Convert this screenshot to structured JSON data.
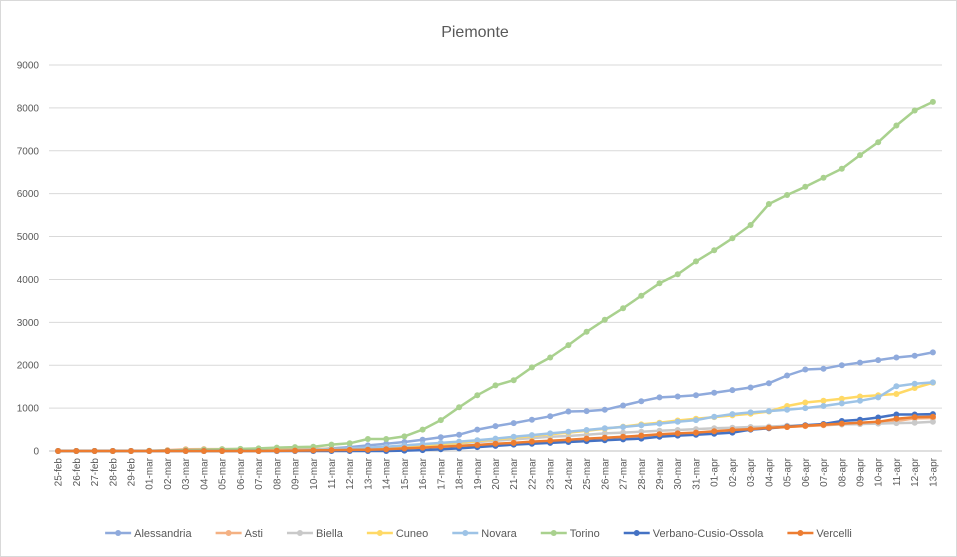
{
  "chart_data": {
    "type": "line",
    "title": "Piemonte",
    "xlabel": "",
    "ylabel": "",
    "ylim": [
      0,
      9000
    ],
    "yticks": [
      0,
      1000,
      2000,
      3000,
      4000,
      5000,
      6000,
      7000,
      8000,
      9000
    ],
    "grid": true,
    "legend_position": "bottom",
    "categories": [
      "25-feb",
      "26-feb",
      "27-feb",
      "28-feb",
      "29-feb",
      "01-mar",
      "02-mar",
      "03-mar",
      "04-mar",
      "05-mar",
      "06-mar",
      "07-mar",
      "08-mar",
      "09-mar",
      "10-mar",
      "11-mar",
      "12-mar",
      "13-mar",
      "14-mar",
      "15-mar",
      "16-mar",
      "17-mar",
      "18-mar",
      "19-mar",
      "20-mar",
      "21-mar",
      "22-mar",
      "23-mar",
      "24-mar",
      "25-mar",
      "26-mar",
      "27-mar",
      "28-mar",
      "29-mar",
      "30-mar",
      "31-mar",
      "01-apr",
      "02-apr",
      "03-apr",
      "04-apr",
      "05-apr",
      "06-apr",
      "07-apr",
      "08-apr",
      "09-apr",
      "10-apr",
      "11-apr",
      "12-apr",
      "13-apr"
    ],
    "series": [
      {
        "name": "Alessandria",
        "color": "#8faadc",
        "values": [
          0,
          0,
          0,
          0,
          0,
          0,
          0,
          2,
          5,
          8,
          10,
          15,
          20,
          25,
          35,
          60,
          90,
          130,
          170,
          210,
          260,
          320,
          380,
          500,
          580,
          650,
          730,
          810,
          920,
          930,
          960,
          1060,
          1160,
          1250,
          1270,
          1300,
          1360,
          1420,
          1480,
          1580,
          1760,
          1900,
          1920,
          2000,
          2060,
          2120,
          2180,
          2220,
          2300
        ]
      },
      {
        "name": "Asti",
        "color": "#f4b183",
        "values": [
          0,
          0,
          0,
          0,
          0,
          0,
          20,
          40,
          45,
          45,
          45,
          45,
          45,
          50,
          50,
          50,
          50,
          55,
          60,
          70,
          80,
          100,
          120,
          140,
          160,
          180,
          200,
          220,
          240,
          270,
          290,
          310,
          340,
          380,
          400,
          420,
          450,
          480,
          510,
          530,
          560,
          580,
          600,
          620,
          630,
          650,
          700,
          760,
          770
        ]
      },
      {
        "name": "Biella",
        "color": "#c9c9c9",
        "values": [
          0,
          0,
          0,
          0,
          0,
          0,
          0,
          0,
          0,
          0,
          0,
          0,
          0,
          5,
          10,
          20,
          30,
          50,
          70,
          100,
          120,
          150,
          180,
          210,
          240,
          270,
          300,
          330,
          350,
          380,
          410,
          430,
          450,
          470,
          490,
          510,
          530,
          540,
          560,
          570,
          590,
          600,
          610,
          620,
          630,
          640,
          650,
          660,
          680
        ]
      },
      {
        "name": "Cuneo",
        "color": "#ffd966",
        "values": [
          0,
          0,
          0,
          0,
          0,
          0,
          0,
          0,
          0,
          0,
          5,
          10,
          15,
          20,
          30,
          40,
          50,
          60,
          80,
          100,
          130,
          160,
          190,
          230,
          270,
          310,
          350,
          390,
          430,
          470,
          520,
          570,
          620,
          660,
          710,
          750,
          790,
          830,
          870,
          920,
          1050,
          1130,
          1170,
          1220,
          1270,
          1300,
          1330,
          1470,
          1590
        ]
      },
      {
        "name": "Novara",
        "color": "#9dc3e6",
        "values": [
          0,
          0,
          0,
          0,
          0,
          0,
          0,
          0,
          0,
          0,
          0,
          5,
          10,
          20,
          30,
          40,
          60,
          80,
          100,
          130,
          160,
          190,
          220,
          250,
          290,
          330,
          370,
          410,
          450,
          490,
          530,
          560,
          600,
          640,
          680,
          720,
          800,
          860,
          900,
          930,
          960,
          1000,
          1050,
          1110,
          1170,
          1250,
          1510,
          1570,
          1600
        ]
      },
      {
        "name": "Torino",
        "color": "#a9d18e",
        "values": [
          0,
          0,
          0,
          0,
          0,
          5,
          10,
          20,
          30,
          40,
          50,
          60,
          80,
          90,
          100,
          150,
          180,
          280,
          280,
          340,
          500,
          720,
          1020,
          1300,
          1530,
          1650,
          1950,
          2180,
          2470,
          2780,
          3060,
          3330,
          3620,
          3910,
          4120,
          4420,
          4680,
          4960,
          5270,
          5760,
          5970,
          6160,
          6370,
          6580,
          6900,
          7200,
          7590,
          7940,
          8140
        ]
      },
      {
        "name": "Verbano-Cusio-Ossola",
        "color": "#4472c4",
        "values": [
          0,
          0,
          0,
          0,
          0,
          0,
          0,
          0,
          0,
          0,
          0,
          0,
          0,
          0,
          0,
          0,
          0,
          0,
          0,
          10,
          20,
          40,
          60,
          90,
          120,
          150,
          170,
          190,
          210,
          230,
          250,
          270,
          290,
          330,
          360,
          380,
          400,
          430,
          500,
          530,
          570,
          600,
          630,
          700,
          730,
          780,
          850,
          850,
          860
        ]
      },
      {
        "name": "Vercelli",
        "color": "#ed7d31",
        "values": [
          0,
          0,
          0,
          0,
          0,
          0,
          0,
          0,
          0,
          0,
          0,
          0,
          5,
          10,
          15,
          20,
          25,
          30,
          40,
          60,
          80,
          100,
          120,
          140,
          170,
          190,
          220,
          240,
          260,
          290,
          310,
          330,
          360,
          390,
          410,
          430,
          460,
          490,
          510,
          540,
          560,
          590,
          610,
          640,
          660,
          680,
          750,
          790,
          800
        ]
      }
    ]
  }
}
